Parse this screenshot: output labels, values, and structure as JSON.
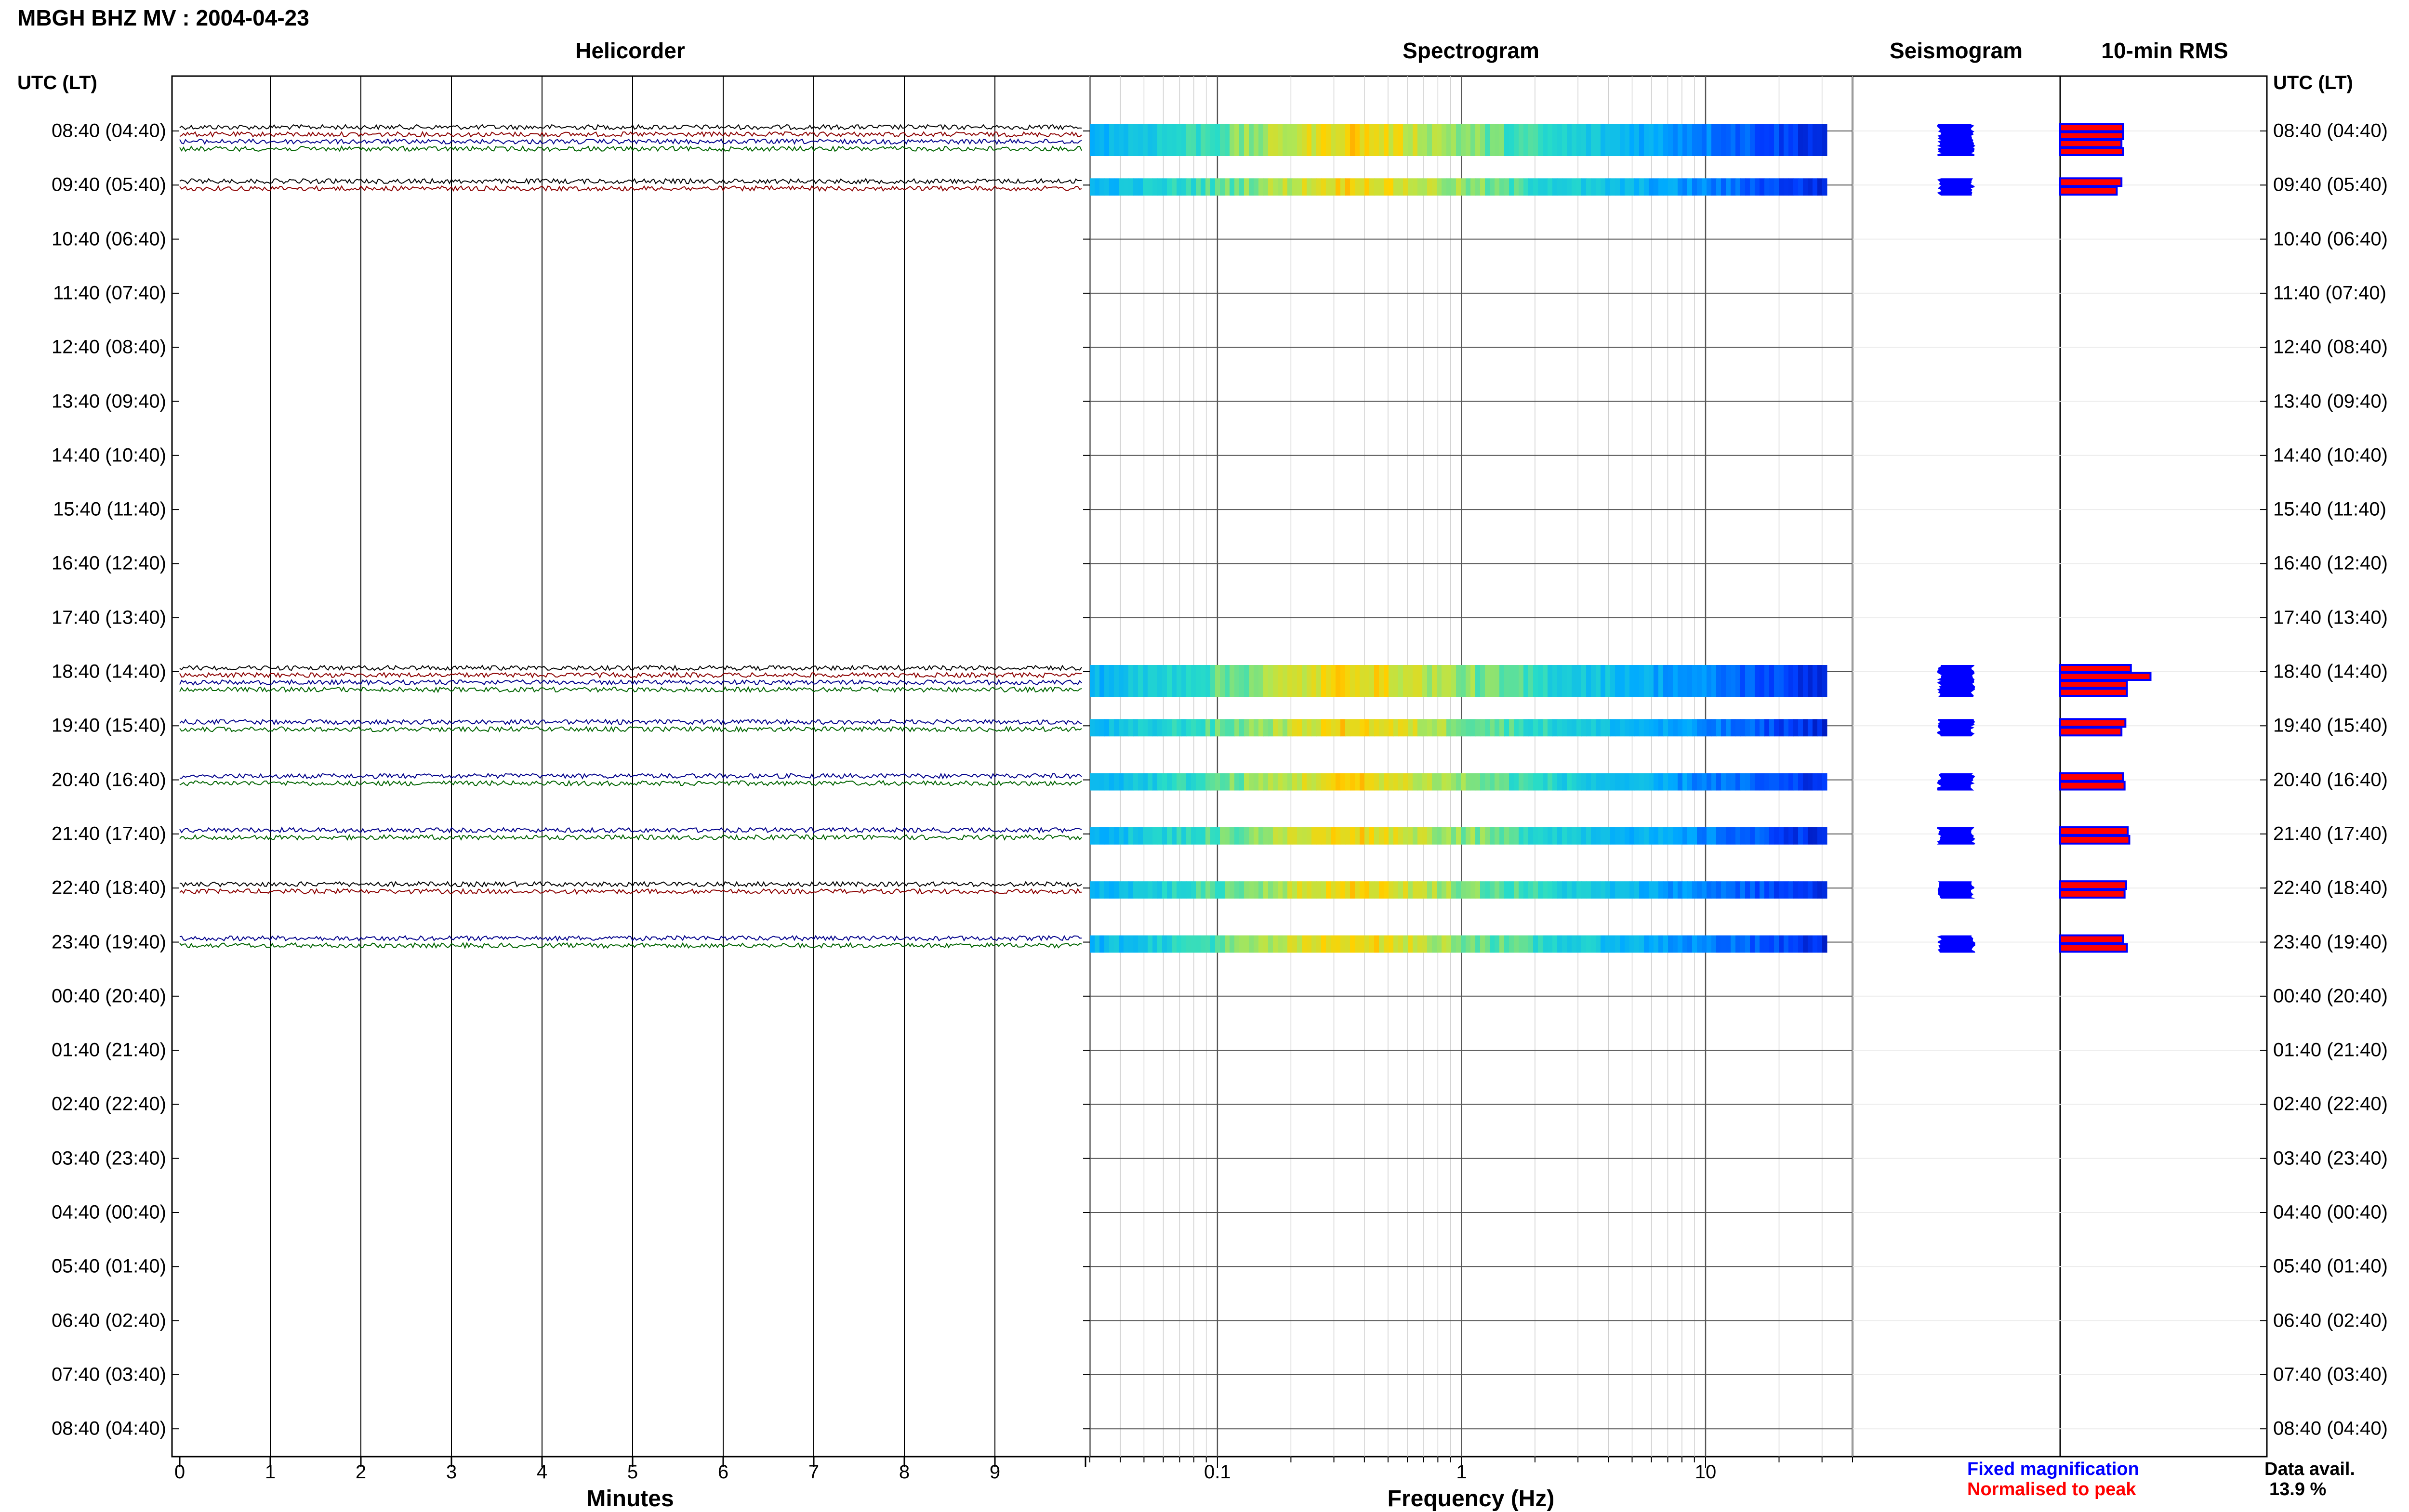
{
  "title": "MBGH BHZ MV : 2004-04-23",
  "panels": {
    "helicorder": "Helicorder",
    "spectrogram": "Spectrogram",
    "seismogram": "Seismogram",
    "rms": "10-min RMS"
  },
  "time_axis_header": "UTC (LT)",
  "time_labels": [
    "08:40 (04:40)",
    "09:40 (05:40)",
    "10:40 (06:40)",
    "11:40 (07:40)",
    "12:40 (08:40)",
    "13:40 (09:40)",
    "14:40 (10:40)",
    "15:40 (11:40)",
    "16:40 (12:40)",
    "17:40 (13:40)",
    "18:40 (14:40)",
    "19:40 (15:40)",
    "20:40 (16:40)",
    "21:40 (17:40)",
    "22:40 (18:40)",
    "23:40 (19:40)",
    "00:40 (20:40)",
    "01:40 (21:40)",
    "02:40 (22:40)",
    "03:40 (23:40)",
    "04:40 (00:40)",
    "05:40 (01:40)",
    "06:40 (02:40)",
    "07:40 (03:40)",
    "08:40 (04:40)"
  ],
  "minutes_ticks": [
    "0",
    "1",
    "2",
    "3",
    "4",
    "5",
    "6",
    "7",
    "8",
    "9"
  ],
  "minutes_label": "Minutes",
  "frequency_ticks": [
    "0.1",
    "1",
    "10"
  ],
  "frequency_label": "Frequency (Hz)",
  "legend": {
    "fixed": "Fixed magnification",
    "normalised": "Normalised to peak"
  },
  "data_availability": {
    "label": "Data avail.",
    "value": "13.9 %"
  },
  "colors": {
    "trace_black": "#000000",
    "trace_red": "#8b0000",
    "trace_blue": "#00008b",
    "trace_green": "#006400",
    "seismogram": "#0000ff",
    "rms_fill": "#ff0000",
    "rms_edge": "#0000ff"
  },
  "chart_data": {
    "type": "heatmap",
    "x_minutes_range": [
      0,
      10
    ],
    "frequency_range_hz": [
      0.03,
      40
    ],
    "frequency_scale": "log",
    "hour_rows": 25,
    "rows_with_data": [
      {
        "hour": "08:40",
        "traces": 4,
        "colors": [
          "black",
          "red",
          "blue",
          "green"
        ],
        "rms": [
          0.8,
          0.8,
          0.78,
          0.8
        ]
      },
      {
        "hour": "09:40",
        "traces": 2,
        "colors": [
          "black",
          "red"
        ],
        "rms": [
          0.78,
          0.72
        ]
      },
      {
        "hour": "18:40",
        "traces": 4,
        "colors": [
          "black",
          "red",
          "blue",
          "green"
        ],
        "rms": [
          0.9,
          1.15,
          0.85,
          0.85
        ]
      },
      {
        "hour": "19:40",
        "traces": 2,
        "colors": [
          "blue",
          "green"
        ],
        "rms": [
          0.83,
          0.78
        ]
      },
      {
        "hour": "20:40",
        "traces": 2,
        "colors": [
          "blue",
          "green"
        ],
        "rms": [
          0.8,
          0.82
        ]
      },
      {
        "hour": "21:40",
        "traces": 2,
        "colors": [
          "blue",
          "green"
        ],
        "rms": [
          0.86,
          0.88
        ]
      },
      {
        "hour": "22:40",
        "traces": 2,
        "colors": [
          "black",
          "red"
        ],
        "rms": [
          0.84,
          0.82
        ]
      },
      {
        "hour": "23:40",
        "traces": 2,
        "colors": [
          "blue",
          "green"
        ],
        "rms": [
          0.8,
          0.85
        ]
      }
    ],
    "data_availability_percent": 13.9
  }
}
